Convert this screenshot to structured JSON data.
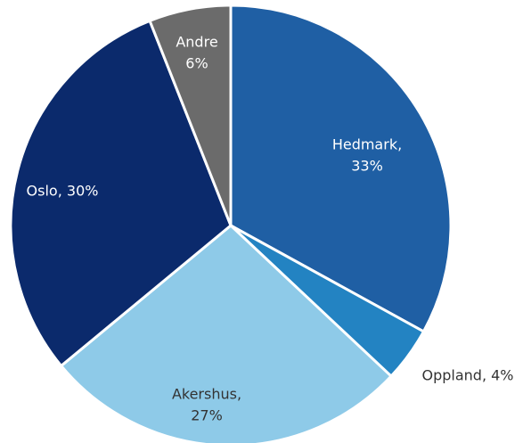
{
  "chart_data": {
    "type": "pie",
    "labels": [
      [
        "Hedmark,",
        "33%"
      ],
      [
        "Oppland, 4%"
      ],
      [
        "Akershus,",
        "27%"
      ],
      [
        "Oslo, 30%"
      ],
      [
        "Andre",
        "6%"
      ]
    ],
    "values": [
      33,
      4,
      27,
      30,
      6
    ],
    "colors": [
      "#1f5fa4",
      "#2383c2",
      "#8ecae8",
      "#0b2a6c",
      "#6b6b6b"
    ],
    "label_colors": [
      "#ffffff",
      "#333333",
      "#333333",
      "#ffffff",
      "#ffffff"
    ]
  }
}
